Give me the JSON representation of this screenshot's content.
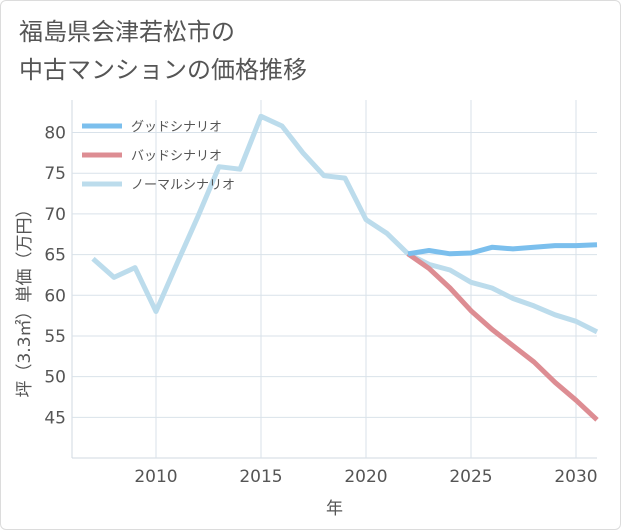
{
  "title": {
    "line1": "福島県会津若松市の",
    "line2": "中古マンションの価格推移"
  },
  "chart_data": {
    "type": "line",
    "title": "福島県会津若松市の中古マンションの価格推移",
    "xlabel": "年",
    "ylabel": "坪（3.3㎡）単価（万円）",
    "xlim": [
      2006,
      2031
    ],
    "ylim": [
      40,
      84
    ],
    "xticks": [
      2010,
      2015,
      2020,
      2025,
      2030
    ],
    "yticks": [
      45,
      50,
      55,
      60,
      65,
      70,
      75,
      80
    ],
    "legend_position": "top-left",
    "series": [
      {
        "name": "グッドシナリオ",
        "color": "#7bbfed",
        "points": [
          [
            2022,
            65.1
          ],
          [
            2023,
            65.5
          ],
          [
            2024,
            65.1
          ],
          [
            2025,
            65.2
          ],
          [
            2026,
            65.9
          ],
          [
            2027,
            65.7
          ],
          [
            2028,
            65.9
          ],
          [
            2029,
            66.1
          ],
          [
            2030,
            66.1
          ],
          [
            2031,
            66.2
          ]
        ]
      },
      {
        "name": "バッドシナリオ",
        "color": "#dd8d93",
        "points": [
          [
            2022,
            65.1
          ],
          [
            2023,
            63.3
          ],
          [
            2024,
            60.9
          ],
          [
            2025,
            58.1
          ],
          [
            2026,
            55.8
          ],
          [
            2027,
            53.8
          ],
          [
            2028,
            51.8
          ],
          [
            2029,
            49.3
          ],
          [
            2030,
            47.1
          ],
          [
            2031,
            44.7
          ]
        ]
      },
      {
        "name": "ノーマルシナリオ",
        "color": "#bcdcec",
        "points": [
          [
            2007,
            64.5
          ],
          [
            2008,
            62.2
          ],
          [
            2009,
            63.4
          ],
          [
            2010,
            58.0
          ],
          [
            2011,
            63.9
          ],
          [
            2012,
            69.7
          ],
          [
            2013,
            75.8
          ],
          [
            2014,
            75.5
          ],
          [
            2015,
            82.0
          ],
          [
            2016,
            80.8
          ],
          [
            2017,
            77.5
          ],
          [
            2018,
            74.7
          ],
          [
            2019,
            74.4
          ],
          [
            2020,
            69.3
          ],
          [
            2021,
            67.6
          ],
          [
            2022,
            65.1
          ],
          [
            2023,
            63.8
          ],
          [
            2024,
            63.1
          ],
          [
            2025,
            61.6
          ],
          [
            2026,
            60.9
          ],
          [
            2027,
            59.6
          ],
          [
            2028,
            58.7
          ],
          [
            2029,
            57.6
          ],
          [
            2030,
            56.8
          ],
          [
            2031,
            55.5
          ]
        ]
      }
    ]
  }
}
